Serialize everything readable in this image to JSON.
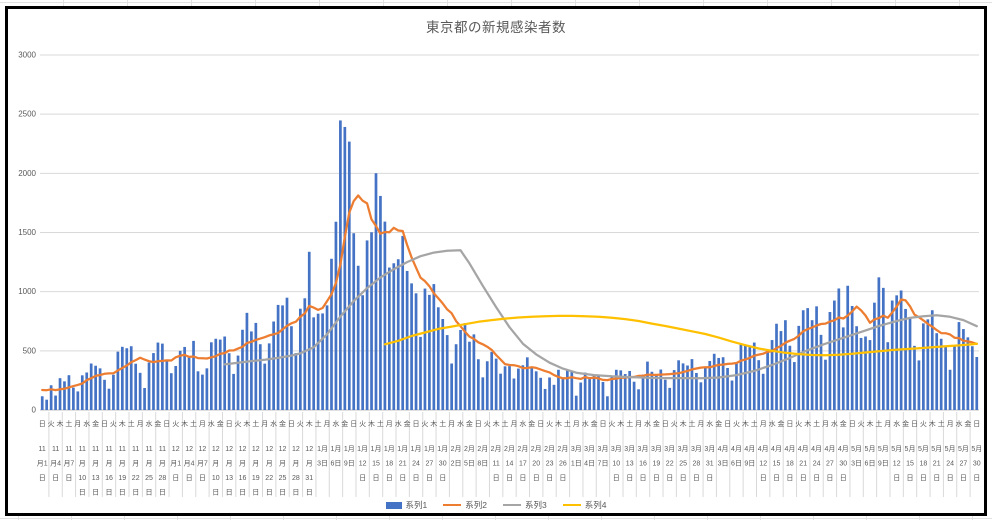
{
  "chart_data": {
    "type": "combo",
    "title": "東京都の新規感染者数",
    "grid": true,
    "legend_position": "bottom",
    "ylim": [
      0,
      3000
    ],
    "y_ticks": [
      "0",
      "500",
      "1000",
      "1500",
      "2000",
      "2500",
      "3000"
    ],
    "x": {
      "n_points": 211,
      "unit": "day (index 0 = 11月1日, index 210 = 5月30日)",
      "weekday_tick_interval": 2,
      "weekday_cycle_shown": [
        "日",
        "火",
        "木",
        "土",
        "月",
        "水",
        "金"
      ],
      "date_tick_interval": 3,
      "date_tick_labels": [
        "11月1日",
        "11月4日",
        "11月7日",
        "11月10日",
        "11月13日",
        "11月16日",
        "11月19日",
        "11月22日",
        "11月25日",
        "11月28日",
        "12月1日",
        "12月4日",
        "12月7日",
        "12月10日",
        "12月13日",
        "12月16日",
        "12月19日",
        "12月22日",
        "12月25日",
        "12月28日",
        "12月31日",
        "1月3日",
        "1月6日",
        "1月9日",
        "1月12日",
        "1月15日",
        "1月18日",
        "1月21日",
        "1月24日",
        "1月27日",
        "1月30日",
        "2月2日",
        "2月5日",
        "2月8日",
        "2月11日",
        "2月14日",
        "2月17日",
        "2月20日",
        "2月23日",
        "2月26日",
        "3月1日",
        "3月4日",
        "3月7日",
        "3月10日",
        "3月13日",
        "3月16日",
        "3月19日",
        "3月22日",
        "3月25日",
        "3月28日",
        "3月31日",
        "4月3日",
        "4月6日",
        "4月9日",
        "4月12日",
        "4月15日",
        "4月18日",
        "4月21日",
        "4月24日",
        "4月27日",
        "4月30日",
        "5月3日",
        "5月6日",
        "5月9日",
        "5月12日",
        "5月15日",
        "5月18日",
        "5月21日",
        "5月24日",
        "5月27日",
        "5月30日"
      ]
    },
    "series": [
      {
        "name": "系列1",
        "type": "bar",
        "color": "#4472C4",
        "values": [
          116,
          87,
          209,
          122,
          269,
          242,
          294,
          189,
          157,
          293,
          317,
          393,
          374,
          352,
          255,
          180,
          298,
          493,
          534,
          522,
          539,
          391,
          314,
          186,
          401,
          481,
          570,
          561,
          418,
          311,
          372,
          500,
          533,
          449,
          584,
          327,
          299,
          352,
          572,
          602,
          595,
          621,
          480,
          305,
          460,
          678,
          821,
          664,
          736,
          556,
          392,
          563,
          748,
          888,
          884,
          949,
          708,
          481,
          856,
          944,
          1337,
          783,
          814,
          816,
          884,
          1278,
          1591,
          2447,
          2392,
          2268,
          1494,
          1219,
          970,
          1433,
          1502,
          2001,
          1809,
          1592,
          1204,
          1240,
          1274,
          1471,
          1175,
          1070,
          986,
          618,
          1026,
          973,
          1064,
          868,
          769,
          633,
          393,
          556,
          676,
          734,
          577,
          639,
          429,
          276,
          412,
          491,
          434,
          307,
          369,
          371,
          266,
          350,
          378,
          445,
          353,
          327,
          272,
          178,
          275,
          213,
          340,
          270,
          337,
          329,
          121,
          232,
          316,
          279,
          301,
          293,
          237,
          116,
          290,
          340,
          335,
          304,
          330,
          239,
          175,
          300,
          409,
          323,
          303,
          342,
          256,
          187,
          337,
          420,
          394,
          376,
          430,
          313,
          234,
          364,
          414,
          475,
          440,
          446,
          355,
          249,
          399,
          555,
          545,
          537,
          570,
          421,
          306,
          510,
          591,
          729,
          667,
          759,
          543,
          405,
          711,
          843,
          861,
          759,
          876,
          635,
          425,
          828,
          925,
          1027,
          698,
          1050,
          879,
          708,
          609,
          621,
          591,
          907,
          1121,
          1032,
          573,
          925,
          969,
          1010,
          854,
          772,
          542,
          419,
          732,
          766,
          843,
          649,
          602,
          535,
          340,
          542,
          743,
          684,
          614,
          539,
          448
        ]
      },
      {
        "name": "系列2",
        "type": "line",
        "color": "#ED7D31",
        "values": [
          169,
          167,
          175,
          168,
          175,
          180,
          191,
          202,
          212,
          224,
          252,
          269,
          288,
          296,
          306,
          309,
          310,
          335,
          355,
          376,
          403,
          422,
          442,
          426,
          412,
          405,
          412,
          415,
          419,
          418,
          445,
          459,
          466,
          449,
          452,
          439,
          438,
          435,
          445,
          455,
          476,
          481,
          503,
          504,
          519,
          534,
          566,
          576,
          592,
          603,
          615,
          630,
          640,
          650,
          681,
          711,
          733,
          746,
          788,
          816,
          880,
          865,
          846,
          862,
          919,
          979,
          1072,
          1230,
          1460,
          1668,
          1765,
          1813,
          1769,
          1746,
          1611,
          1555,
          1490,
          1504,
          1502,
          1540,
          1517,
          1513,
          1395,
          1289,
          1203,
          1119,
          1089,
          1046,
          987,
          944,
          901,
          850,
          818,
          751,
          708,
          661,
          620,
          601,
          572,
          555,
          535,
          508,
          465,
          427,
          388,
          380,
          379,
          370,
          354,
          355,
          362,
          356,
          342,
          329,
          318,
          295,
          280,
          268,
          269,
          277,
          269,
          263,
          278,
          269,
          274,
          267,
          254,
          253,
          262,
          265,
          273,
          274,
          279,
          279,
          288,
          289,
          299,
          297,
          297,
          299,
          301,
          303,
          308,
          310,
          320,
          330,
          343,
          351,
          358,
          362,
          361,
          372,
          381,
          384,
          390,
          392,
          397,
          417,
          427,
          441,
          459,
          468,
          476,
          492,
          497,
          523,
          542,
          569,
          586,
          601,
          629,
          665,
          684,
          697,
          714,
          727,
          730,
          747,
          758,
          782,
          773,
          798,
          833,
          874,
          842,
          799,
          737,
          766,
          777,
          798,
          779,
          824,
          874,
          934,
          926,
          876,
          806,
          784,
          757,
          728,
          704,
          675,
          650,
          649,
          638,
          611,
          608,
          585,
          580,
          571,
          559
        ]
      },
      {
        "name": "系列3",
        "type": "line",
        "color": "#A5A5A5",
        "points": [
          [
            41,
            385
          ],
          [
            44,
            400
          ],
          [
            47,
            413
          ],
          [
            50,
            425
          ],
          [
            53,
            440
          ],
          [
            56,
            460
          ],
          [
            58,
            478
          ],
          [
            61,
            530
          ],
          [
            64,
            640
          ],
          [
            67,
            790
          ],
          [
            70,
            920
          ],
          [
            73,
            1030
          ],
          [
            76,
            1120
          ],
          [
            79,
            1190
          ],
          [
            82,
            1250
          ],
          [
            85,
            1300
          ],
          [
            88,
            1330
          ],
          [
            91,
            1345
          ],
          [
            94,
            1350
          ],
          [
            96,
            1240
          ],
          [
            99,
            1050
          ],
          [
            102,
            870
          ],
          [
            105,
            700
          ],
          [
            108,
            560
          ],
          [
            111,
            470
          ],
          [
            114,
            400
          ],
          [
            117,
            350
          ],
          [
            120,
            315
          ],
          [
            124,
            295
          ],
          [
            128,
            285
          ],
          [
            132,
            278
          ],
          [
            136,
            272
          ],
          [
            140,
            270
          ],
          [
            144,
            270
          ],
          [
            148,
            268
          ],
          [
            152,
            275
          ],
          [
            156,
            295
          ],
          [
            160,
            330
          ],
          [
            164,
            380
          ],
          [
            168,
            440
          ],
          [
            172,
            505
          ],
          [
            176,
            560
          ],
          [
            180,
            610
          ],
          [
            184,
            660
          ],
          [
            188,
            710
          ],
          [
            192,
            752
          ],
          [
            195,
            778
          ],
          [
            198,
            792
          ],
          [
            201,
            800
          ],
          [
            204,
            788
          ],
          [
            207,
            760
          ],
          [
            210,
            708
          ]
        ]
      },
      {
        "name": "系列4",
        "type": "line",
        "color": "#FFC000",
        "points": [
          [
            77,
            555
          ],
          [
            80,
            585
          ],
          [
            83,
            625
          ],
          [
            86,
            655
          ],
          [
            89,
            685
          ],
          [
            92,
            705
          ],
          [
            95,
            725
          ],
          [
            98,
            745
          ],
          [
            101,
            760
          ],
          [
            104,
            772
          ],
          [
            107,
            782
          ],
          [
            110,
            788
          ],
          [
            113,
            792
          ],
          [
            116,
            795
          ],
          [
            119,
            795
          ],
          [
            122,
            793
          ],
          [
            125,
            788
          ],
          [
            128,
            780
          ],
          [
            131,
            768
          ],
          [
            134,
            752
          ],
          [
            137,
            730
          ],
          [
            140,
            710
          ],
          [
            143,
            688
          ],
          [
            146,
            665
          ],
          [
            149,
            642
          ],
          [
            152,
            612
          ],
          [
            155,
            578
          ],
          [
            158,
            548
          ],
          [
            161,
            520
          ],
          [
            164,
            500
          ],
          [
            167,
            483
          ],
          [
            170,
            472
          ],
          [
            173,
            465
          ],
          [
            176,
            463
          ],
          [
            179,
            467
          ],
          [
            182,
            475
          ],
          [
            185,
            486
          ],
          [
            188,
            497
          ],
          [
            191,
            507
          ],
          [
            194,
            515
          ],
          [
            197,
            522
          ],
          [
            200,
            530
          ],
          [
            203,
            538
          ],
          [
            206,
            546
          ],
          [
            209,
            556
          ],
          [
            210,
            560
          ]
        ]
      }
    ],
    "colors": {
      "gridline": "#D9D9D9",
      "axis_line": "#BFBFBF",
      "axis_text": "#595959",
      "title_text": "#595959"
    }
  }
}
